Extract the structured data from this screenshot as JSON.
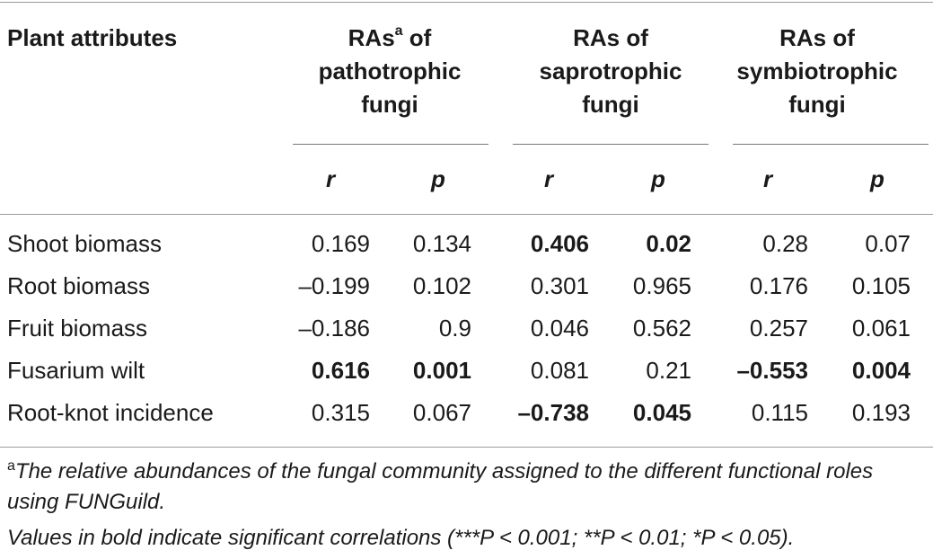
{
  "header": {
    "plant_attributes": "Plant attributes",
    "groups": [
      {
        "line1_main": "RAs",
        "line1_sup": "a",
        "line1_rest": " of",
        "line2": "pathotrophic",
        "line3": "fungi"
      },
      {
        "line1_main": "RAs of",
        "line1_sup": "",
        "line1_rest": "",
        "line2": "saprotrophic",
        "line3": "fungi"
      },
      {
        "line1_main": "RAs of",
        "line1_sup": "",
        "line1_rest": "",
        "line2": "symbiotrophic",
        "line3": "fungi"
      }
    ],
    "sub": [
      "r",
      "p",
      "r",
      "p",
      "r",
      "p"
    ]
  },
  "rows": [
    {
      "attr": "Shoot biomass",
      "v": [
        "0.169",
        "0.134",
        "0.406",
        "0.02",
        "0.28",
        "0.07"
      ],
      "bold": [
        false,
        false,
        true,
        true,
        false,
        false
      ]
    },
    {
      "attr": "Root biomass",
      "v": [
        "–0.199",
        "0.102",
        "0.301",
        "0.965",
        "0.176",
        "0.105"
      ],
      "bold": [
        false,
        false,
        false,
        false,
        false,
        false
      ]
    },
    {
      "attr": "Fruit biomass",
      "v": [
        "–0.186",
        "0.9",
        "0.046",
        "0.562",
        "0.257",
        "0.061"
      ],
      "bold": [
        false,
        false,
        false,
        false,
        false,
        false
      ]
    },
    {
      "attr": "Fusarium wilt",
      "v": [
        "0.616",
        "0.001",
        "0.081",
        "0.21",
        "–0.553",
        "0.004"
      ],
      "bold": [
        true,
        true,
        false,
        false,
        true,
        true
      ]
    },
    {
      "attr": "Root-knot incidence",
      "v": [
        "0.315",
        "0.067",
        "–0.738",
        "0.045",
        "0.115",
        "0.193"
      ],
      "bold": [
        false,
        false,
        true,
        true,
        false,
        false
      ]
    }
  ],
  "footnotes": {
    "a_sup": "a",
    "a_text": "The relative abundances of the fungal community assigned to the different functional roles using FUNGuild.",
    "bold_note": "Values in bold indicate significant correlations (***P < 0.001; **P < 0.01; *P < 0.05)."
  }
}
